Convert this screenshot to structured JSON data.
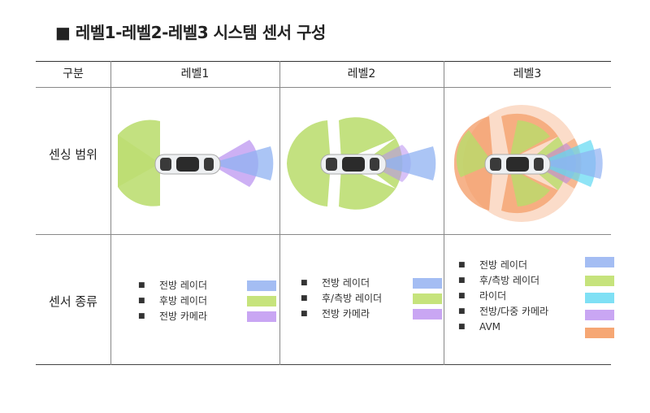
{
  "title": "■ 레벨1-레벨2-레벨3 시스템 센서 구성",
  "table": {
    "headers": [
      "구분",
      "레벨1",
      "레벨2",
      "레벨3"
    ],
    "row_labels": [
      "센싱 범위",
      "센서 종류"
    ],
    "legends": {
      "level1": [
        {
          "label": "전방 레이더",
          "color": "#a4bdf3"
        },
        {
          "label": "후방 레이더",
          "color": "#c6e37c"
        },
        {
          "label": "전방 카메라",
          "color": "#c9a6f3"
        }
      ],
      "level2": [
        {
          "label": "전방 레이더",
          "color": "#a4bdf3"
        },
        {
          "label": "후/측방 레이더",
          "color": "#c6e37c"
        },
        {
          "label": "전방 카메라",
          "color": "#c9a6f3"
        }
      ],
      "level3": [
        {
          "label": "전방 레이더",
          "color": "#a4bdf3"
        },
        {
          "label": "후/측방 레이더",
          "color": "#c6e37c"
        },
        {
          "label": "라이더",
          "color": "#7fe0f5"
        },
        {
          "label": "전방/다중 카메라",
          "color": "#c9a6f3"
        },
        {
          "label": "AVM",
          "color": "#f6a774"
        }
      ]
    }
  },
  "colors": {
    "front_radar": "#8fb1f2",
    "rear_radar": "#b9dc6a",
    "camera": "#b88ef0",
    "lidar": "#5fd8f2",
    "avm": "#f39a63"
  }
}
